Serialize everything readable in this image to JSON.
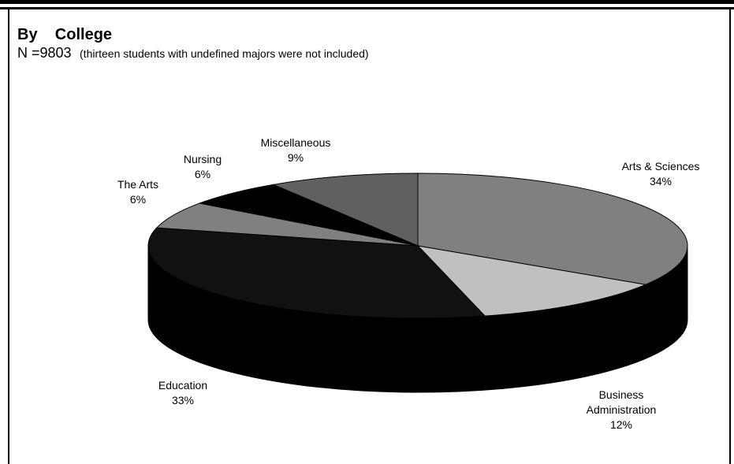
{
  "chart_data": {
    "type": "pie",
    "style": "3d-exploded-none",
    "title": "By    College",
    "n_label": "N =9803",
    "note": "(thirteen students with undefined majors were not included)",
    "slices": [
      {
        "label": "Arts & Sciences",
        "value": 34,
        "value_label": "34%",
        "color": "#808080"
      },
      {
        "label": "Business Administration",
        "label_lines": [
          "Business",
          "Administration"
        ],
        "value": 12,
        "value_label": "12%",
        "color": "#c0c0c0"
      },
      {
        "label": "Education",
        "value": 33,
        "value_label": "33%",
        "color": "#111111"
      },
      {
        "label": "The Arts",
        "label_lines": [
          "The Arts"
        ],
        "value": 6,
        "value_label": "6%",
        "color": "#808080"
      },
      {
        "label": "Nursing",
        "value": 6,
        "value_label": "6%",
        "color": "#000000"
      },
      {
        "label": "Miscellaneous",
        "value": 9,
        "value_label": "9%",
        "color": "#606060"
      }
    ],
    "side_color": "#000000",
    "border_color": "#000000"
  }
}
